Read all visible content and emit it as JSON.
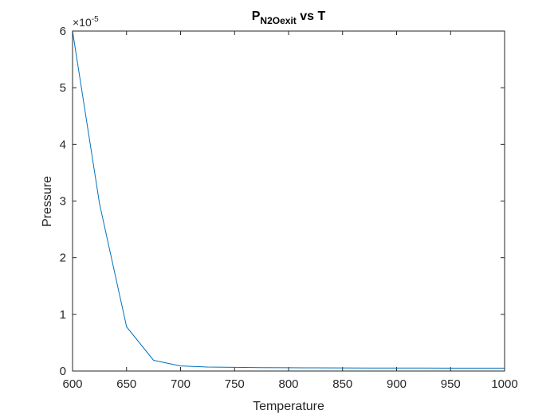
{
  "chart_data": {
    "type": "line",
    "title": {
      "main": "P",
      "subscript": "N2Oexit",
      "rest": " vs T"
    },
    "xlabel": "Temperature",
    "ylabel": "Pressure",
    "exponent": {
      "base": "×10",
      "power": "-5"
    },
    "xlim": [
      600,
      1000
    ],
    "ylim": [
      0,
      6
    ],
    "xticks": [
      600,
      650,
      700,
      750,
      800,
      850,
      900,
      950,
      1000
    ],
    "xtick_labels": [
      "600",
      "650",
      "700",
      "750",
      "800",
      "850",
      "900",
      "950",
      "1000"
    ],
    "yticks": [
      0,
      1,
      2,
      3,
      4,
      5,
      6
    ],
    "ytick_labels": [
      "0",
      "1",
      "2",
      "3",
      "4",
      "5",
      "6"
    ],
    "grid": false,
    "series": [
      {
        "color": "#0072BD",
        "x": [
          600,
          625,
          650,
          675,
          700,
          725,
          750,
          775,
          800,
          825,
          850,
          875,
          900,
          925,
          950,
          975,
          1000
        ],
        "y": [
          6.0,
          2.95,
          0.78,
          0.19,
          0.09,
          0.07,
          0.065,
          0.06,
          0.058,
          0.056,
          0.055,
          0.054,
          0.053,
          0.052,
          0.051,
          0.051,
          0.05
        ]
      }
    ]
  }
}
